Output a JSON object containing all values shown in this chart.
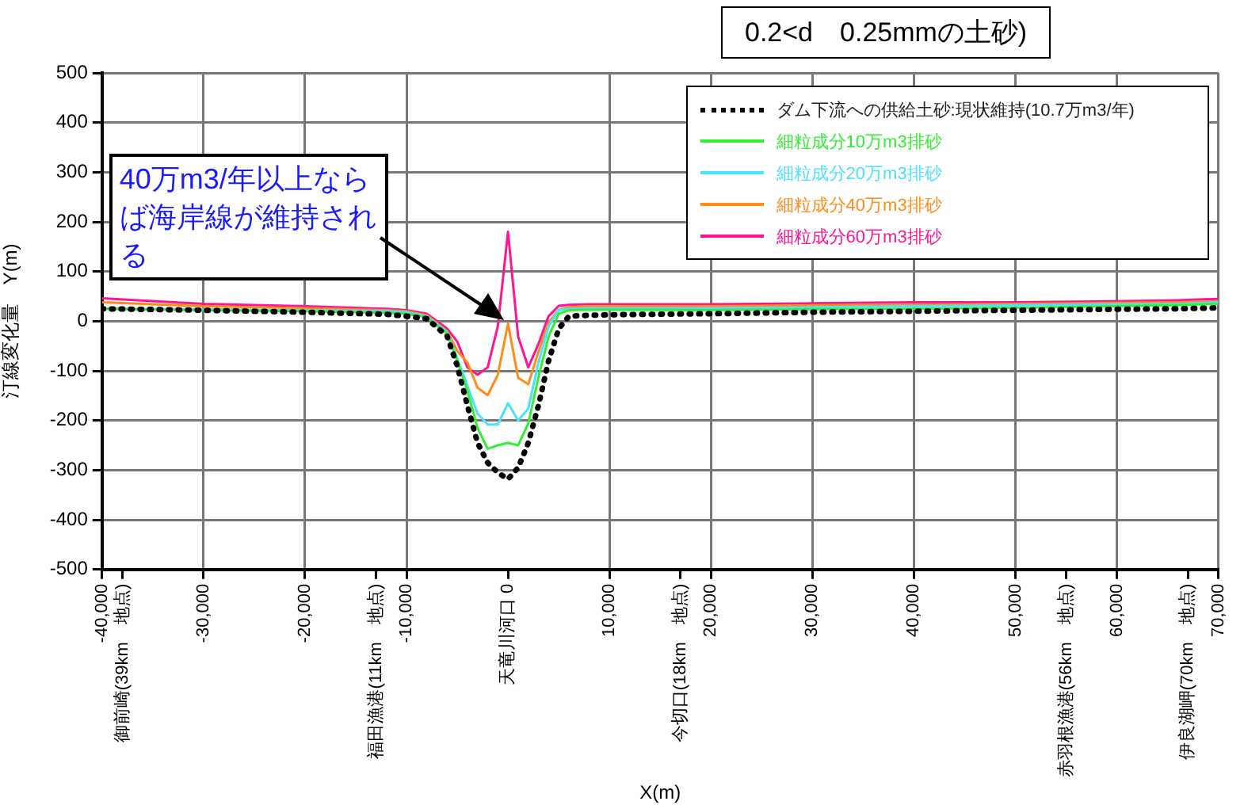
{
  "chart_data": {
    "type": "line",
    "xlabel": "X(m)",
    "ylabel": "汀線変化量　Y(m)",
    "annotations": [
      "40万m3/年以上ならば海岸線が維持される",
      "0.2<d　0.25mmの土砂)"
    ],
    "x": [
      -40000,
      -30000,
      -20000,
      -12000,
      -10000,
      -8000,
      -6000,
      -5000,
      -4000,
      -3000,
      -2000,
      -1000,
      0,
      1000,
      2000,
      3000,
      4000,
      5000,
      6000,
      8000,
      10000,
      20000,
      30000,
      40000,
      50000,
      60000,
      66000,
      70000
    ],
    "series": [
      {
        "name": "ダム下流への供給土砂:現状維持(10.7万m3/年)",
        "color": "#000000",
        "line_style": "dotted",
        "values": [
          25,
          22,
          18,
          14,
          10,
          5,
          -30,
          -90,
          -170,
          -245,
          -285,
          -305,
          -318,
          -295,
          -245,
          -170,
          -80,
          -15,
          10,
          12,
          13,
          15,
          18,
          20,
          22,
          24,
          25,
          27
        ]
      },
      {
        "name": "細粒成分10万m3排砂",
        "color": "#33ee33",
        "values": [
          25,
          22,
          20,
          17,
          15,
          8,
          -25,
          -80,
          -140,
          -215,
          -257,
          -250,
          -245,
          -250,
          -206,
          -113,
          -31,
          15,
          22,
          23,
          23,
          22,
          24,
          25,
          27,
          30,
          32,
          35
        ]
      },
      {
        "name": "細粒成分20万m3排砂",
        "color": "#4de1ff",
        "values": [
          25,
          24,
          22,
          20,
          18,
          10,
          -22,
          -75,
          -130,
          -186,
          -208,
          -208,
          -165,
          -200,
          -176,
          -83,
          -10,
          22,
          25,
          26,
          26,
          26,
          28,
          30,
          32,
          34,
          35,
          38
        ]
      },
      {
        "name": "細粒成分40万m3排砂",
        "color": "#ff8c1a",
        "values": [
          38,
          30,
          26,
          22,
          20,
          12,
          -20,
          -60,
          -83,
          -134,
          -149,
          -108,
          -5,
          -114,
          -127,
          -62,
          -3,
          23,
          28,
          30,
          30,
          30,
          32,
          33,
          35,
          37,
          38,
          40
        ]
      },
      {
        "name": "細粒成分60万m3排砂",
        "color": "#ff1493",
        "values": [
          46,
          35,
          30,
          25,
          22,
          15,
          -15,
          -41,
          -93,
          -108,
          -93,
          -10,
          180,
          -31,
          -93,
          -46,
          10,
          31,
          33,
          34,
          34,
          34,
          36,
          38,
          38,
          40,
          42,
          45
        ]
      }
    ],
    "xlim": [
      -40000,
      70000
    ],
    "xticks": [
      {
        "value": -40000,
        "label": "-40,000"
      },
      {
        "value": -38000,
        "label": "御前崎(39km　地点)"
      },
      {
        "value": -30000,
        "label": "-30,000"
      },
      {
        "value": -20000,
        "label": "-20,000"
      },
      {
        "value": -13000,
        "label": "福田漁港(11km　地点)"
      },
      {
        "value": -10000,
        "label": "-10,000"
      },
      {
        "value": 0,
        "label": "天竜川河口 0"
      },
      {
        "value": 10000,
        "label": "10,000"
      },
      {
        "value": 17000,
        "label": "今切口(18km　地点)"
      },
      {
        "value": 20000,
        "label": "20,000"
      },
      {
        "value": 30000,
        "label": "30,000"
      },
      {
        "value": 40000,
        "label": "40,000"
      },
      {
        "value": 50000,
        "label": "50,000"
      },
      {
        "value": 55000,
        "label": "赤羽根漁港(56km　地点)"
      },
      {
        "value": 60000,
        "label": "60,000"
      },
      {
        "value": 67000,
        "label": "伊良湖岬(70km　地点)"
      },
      {
        "value": 70000,
        "label": "70,000"
      }
    ],
    "ylim": [
      -500,
      500
    ],
    "yticks": [
      -500,
      -400,
      -300,
      -200,
      -100,
      0,
      100,
      200,
      300,
      400,
      500
    ],
    "grid": true,
    "legend": "top right"
  }
}
